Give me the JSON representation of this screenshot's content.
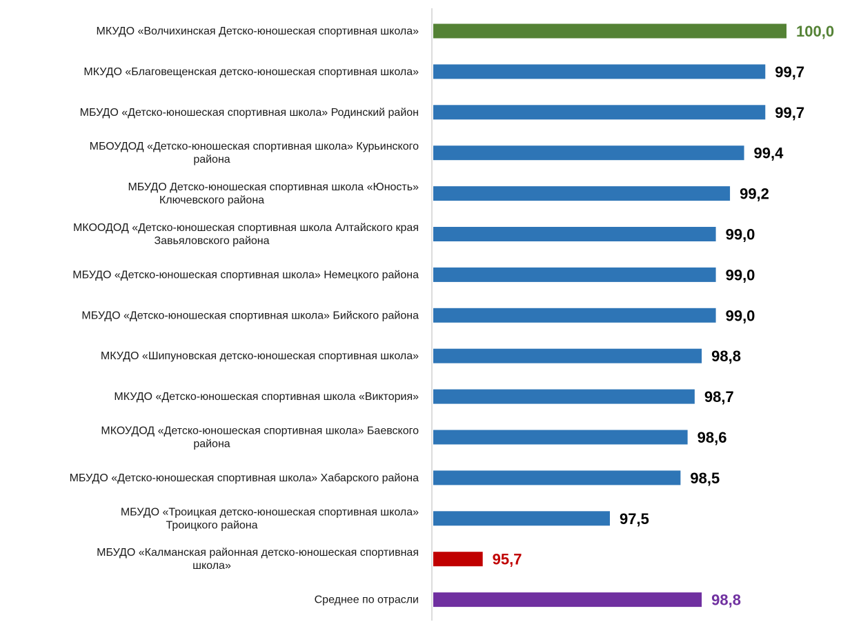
{
  "chart_data": {
    "type": "bar",
    "orientation": "horizontal",
    "title": "",
    "xlabel": "",
    "ylabel": "",
    "grid": false,
    "legend": "none",
    "value_format": "one decimal, comma separator",
    "xlim": [
      95.0,
      100.0
    ],
    "categories": [
      [
        "МКУДО «Волчихинская Детско-юношеская спортивная школа»"
      ],
      [
        "МКУДО «Благовещенская детско-юношеская спортивная школа»"
      ],
      [
        "МБУДО «Детско-юношеская спортивная школа» Родинский район"
      ],
      [
        "МБОУДОД «Детско-юношеская спортивная школа» Курьинского",
        "района"
      ],
      [
        "МБУДО Детско-юношеская спортивная школа «Юность»",
        "Ключевского района"
      ],
      [
        "МКООДОД «Детско-юношеская спортивная школа Алтайского края",
        "Завьяловского района"
      ],
      [
        "МБУДО «Детско-юношеская спортивная школа» Немецкого района"
      ],
      [
        "МБУДО «Детско-юношеская спортивная школа» Бийского района"
      ],
      [
        "МКУДО «Шипуновская детско-юношеская спортивная школа»"
      ],
      [
        "МКУДО «Детско-юношеская спортивная школа «Виктория»"
      ],
      [
        "МКОУДОД «Детско-юношеская спортивная школа» Баевского",
        "района"
      ],
      [
        "МБУДО «Детско-юношеская спортивная школа» Хабарского района"
      ],
      [
        "МБУДО «Троицкая детско-юношеская спортивная школа»",
        "Троицкого района"
      ],
      [
        "МБУДО «Калманская районная детско-юношеская спортивная",
        "школа»"
      ],
      [
        "Среднее по отрасли"
      ]
    ],
    "values": [
      100.0,
      99.7,
      99.7,
      99.4,
      99.2,
      99.0,
      99.0,
      99.0,
      98.8,
      98.7,
      98.6,
      98.5,
      97.5,
      95.7,
      98.8
    ],
    "value_labels": [
      "100,0",
      "99,7",
      "99,7",
      "99,4",
      "99,2",
      "99,0",
      "99,0",
      "99,0",
      "98,8",
      "98,7",
      "98,6",
      "98,5",
      "97,5",
      "95,7",
      "98,8"
    ],
    "bar_colors": [
      "#548235",
      "#2E75B6",
      "#2E75B6",
      "#2E75B6",
      "#2E75B6",
      "#2E75B6",
      "#2E75B6",
      "#2E75B6",
      "#2E75B6",
      "#2E75B6",
      "#2E75B6",
      "#2E75B6",
      "#2E75B6",
      "#C00000",
      "#7030A0"
    ],
    "label_colors": [
      "#548235",
      "#000000",
      "#000000",
      "#000000",
      "#000000",
      "#000000",
      "#000000",
      "#000000",
      "#000000",
      "#000000",
      "#000000",
      "#000000",
      "#000000",
      "#C00000",
      "#7030A0"
    ]
  }
}
